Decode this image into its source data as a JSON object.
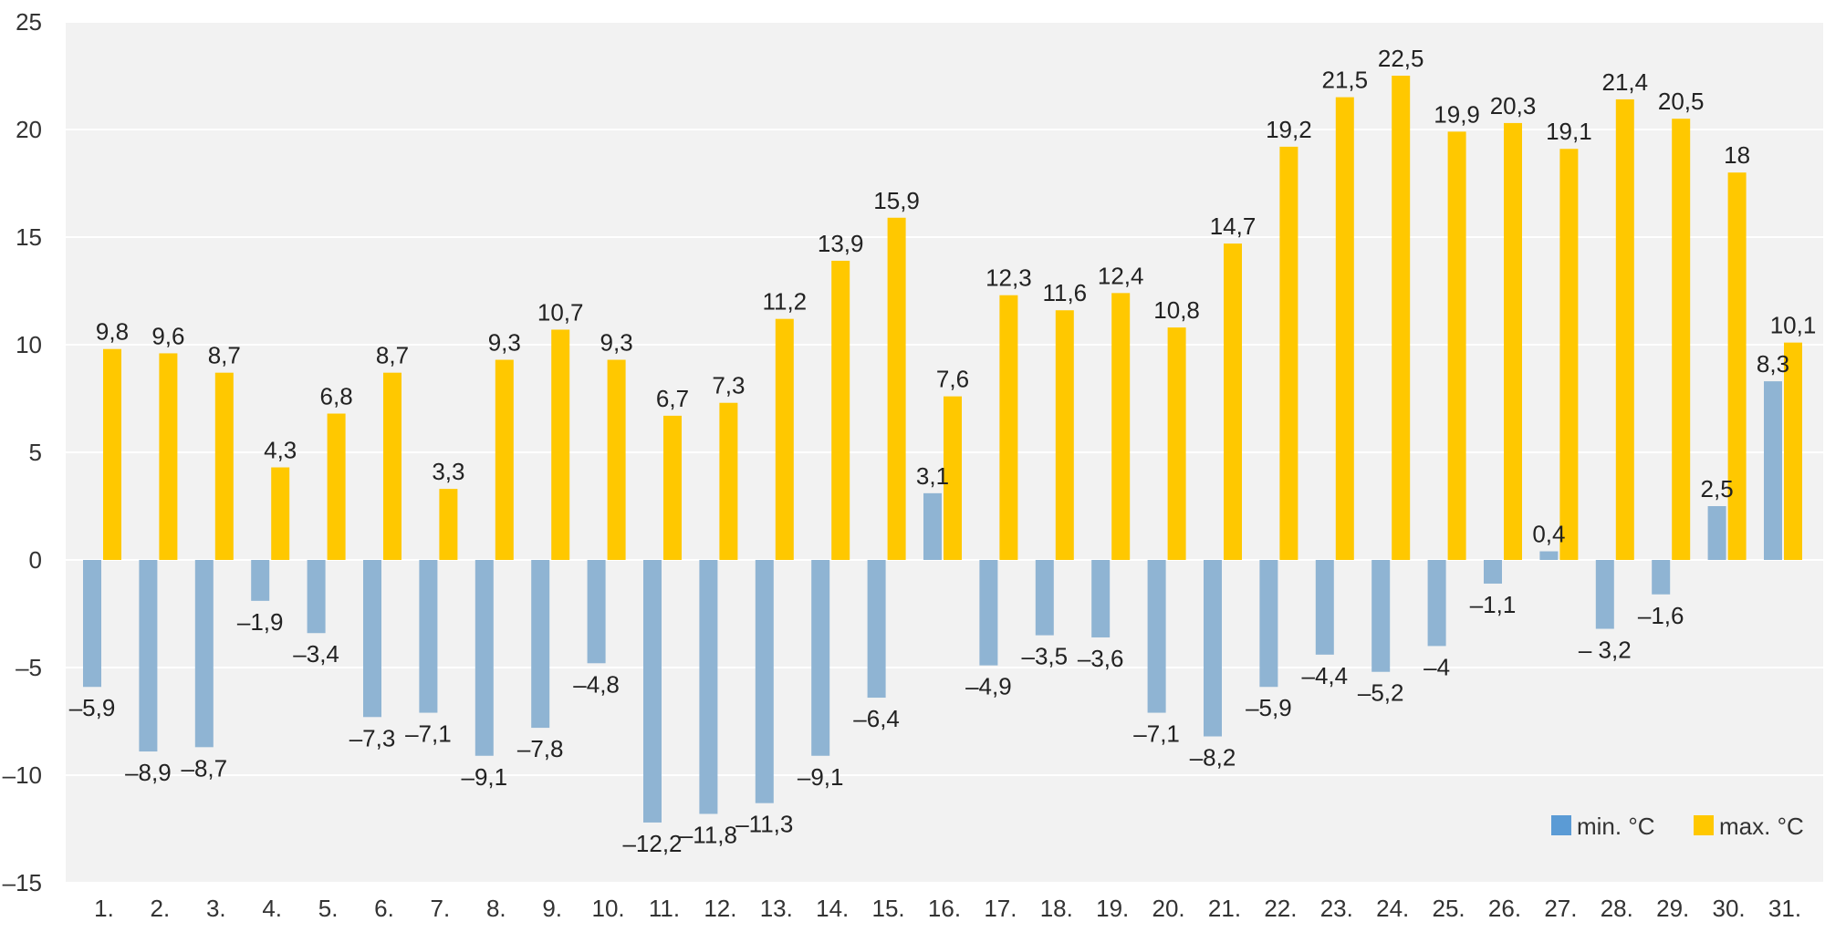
{
  "chart_data": {
    "type": "bar",
    "categories": [
      "1.",
      "2.",
      "3.",
      "4.",
      "5.",
      "6.",
      "7.",
      "8.",
      "9.",
      "10.",
      "11.",
      "12.",
      "13.",
      "14.",
      "15.",
      "16.",
      "17.",
      "18.",
      "19.",
      "20.",
      "21.",
      "22.",
      "23.",
      "24.",
      "25.",
      "26.",
      "27.",
      "28.",
      "29.",
      "30.",
      "31."
    ],
    "series": [
      {
        "name": "min. °C",
        "color": "#8fb4d3",
        "legend_color": "#5b9bd5",
        "values": [
          -5.9,
          -8.9,
          -8.7,
          -1.9,
          -3.4,
          -7.3,
          -7.1,
          -9.1,
          -7.8,
          -4.8,
          -12.2,
          -11.8,
          -11.3,
          -9.1,
          -6.4,
          3.1,
          -4.9,
          -3.5,
          -3.6,
          -7.1,
          -8.2,
          -5.9,
          -4.4,
          -5.2,
          -4,
          -1.1,
          0.4,
          -3.2,
          -1.6,
          2.5,
          8.3
        ],
        "labels": [
          "–5,9",
          "–8,9",
          "–8,7",
          "–1,9",
          "–3,4",
          "–7,3",
          "–7,1",
          "–9,1",
          "–7,8",
          "–4,8",
          "–12,2",
          "–11,8",
          "–11,3",
          "–9,1",
          "–6,4",
          "3,1",
          "–4,9",
          "–3,5",
          "–3,6",
          "–7,1",
          "–8,2",
          "–5,9",
          "–4,4",
          "–5,2",
          "–4",
          "–1,1",
          "0,4",
          "– 3,2",
          "–1,6",
          "2,5",
          "8,3"
        ]
      },
      {
        "name": "max. °C",
        "color": "#ffc800",
        "legend_color": "#ffc800",
        "values": [
          9.8,
          9.6,
          8.7,
          4.3,
          6.8,
          8.7,
          3.3,
          9.3,
          10.7,
          9.3,
          6.7,
          7.3,
          11.2,
          13.9,
          15.9,
          7.6,
          12.3,
          11.6,
          12.4,
          10.8,
          14.7,
          19.2,
          21.5,
          22.5,
          19.9,
          20.3,
          19.1,
          21.4,
          20.5,
          18,
          10.1
        ],
        "labels": [
          "9,8",
          "9,6",
          "8,7",
          "4,3",
          "6,8",
          "8,7",
          "3,3",
          "9,3",
          "10,7",
          "9,3",
          "6,7",
          "7,3",
          "11,2",
          "13,9",
          "15,9",
          "7,6",
          "12,3",
          "11,6",
          "12,4",
          "10,8",
          "14,7",
          "19,2",
          "21,5",
          "22,5",
          "19,9",
          "20,3",
          "19,1",
          "21,4",
          "20,5",
          "18",
          "10,1"
        ]
      }
    ],
    "ylim": [
      -15,
      25
    ],
    "yticks": [
      {
        "value": 25,
        "label": "25"
      },
      {
        "value": 20,
        "label": "20"
      },
      {
        "value": 15,
        "label": "15"
      },
      {
        "value": 10,
        "label": "10"
      },
      {
        "value": 5,
        "label": "5"
      },
      {
        "value": 0,
        "label": "0"
      },
      {
        "value": -5,
        "label": "–5"
      },
      {
        "value": -10,
        "label": "–10"
      },
      {
        "value": -15,
        "label": "–15"
      }
    ],
    "grid": true,
    "legend_position": "bottom-right",
    "plot_background": "#f2f2f2",
    "gridline_color": "#ffffff"
  }
}
